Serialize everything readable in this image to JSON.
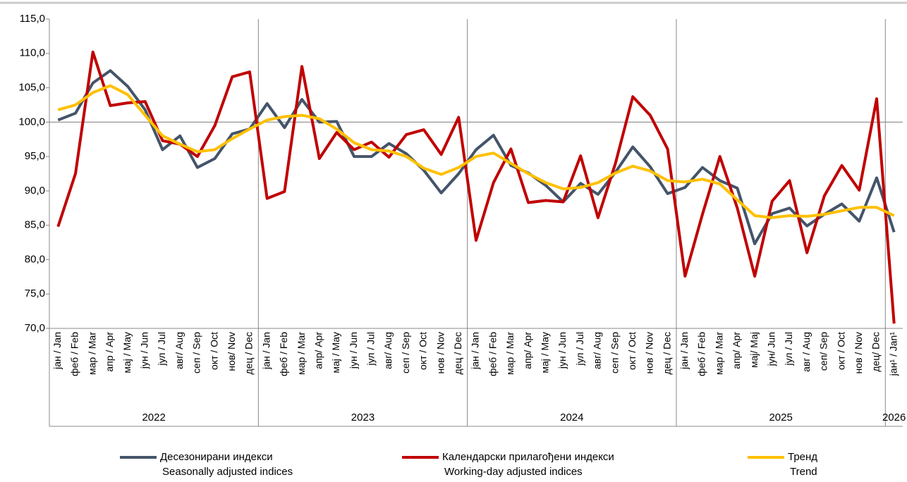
{
  "chart_data": {
    "type": "line",
    "categories": [
      "јан / Jan",
      "феб / Feb",
      "мар / Mar",
      "апр / Apr",
      "мај / May",
      "јун / Jun",
      "јул / Jul",
      "авг/ Aug",
      "сеп / Sep",
      "окт / Oct",
      "нов/ Nov",
      "дец / Dec",
      "јан / Jan",
      "феб / Feb",
      "мар / Mar",
      "апр/ Apr",
      "мај / May",
      "јун / Jun",
      "јул / Jul",
      "авг/ Aug",
      "сеп / Sep",
      "окт / Oct",
      "нов / Nov",
      "дец / Dec",
      "јан / Jan",
      "феб / Feb",
      "мар / Mar",
      "апр/ Apr",
      "мај / May",
      "јун / Jun",
      "јул / Jul",
      "авг/ Aug",
      "сеп / Sep",
      "окт / Oct",
      "нов / Nov",
      "дец / Dec",
      "јан / Jan",
      "феб / Feb",
      "мар / Mar",
      "апр/ Apr",
      "мај/ Мај",
      "јун/ Jun",
      "јул / Jul",
      "авг / Aug",
      "сеп/ Sep",
      "окт / Oct",
      "нов / Nov",
      "дец/ Dec",
      "јан¹ / Jan¹"
    ],
    "years": [
      "2022",
      "2023",
      "2024",
      "2025",
      "2026"
    ],
    "series": [
      {
        "name": "Десезонирани индекси",
        "name_en": "Seasonally adjusted indices",
        "color": "#44546a",
        "values": [
          100.3,
          101.3,
          105.7,
          107.5,
          105.2,
          101.8,
          96.0,
          98.0,
          93.4,
          94.7,
          98.3,
          99.0,
          102.7,
          99.2,
          103.3,
          100.0,
          100.1,
          95.0,
          95.0,
          96.9,
          95.4,
          93.0,
          89.7,
          92.5,
          96.0,
          98.1,
          93.7,
          92.6,
          90.8,
          88.4,
          91.1,
          89.5,
          92.7,
          96.4,
          93.5,
          89.6,
          90.5,
          93.4,
          91.5,
          90.4,
          82.3,
          86.7,
          87.5,
          84.9,
          86.6,
          88.1,
          85.6,
          91.9,
          84.0
        ]
      },
      {
        "name": "Календарски прилагођени индекси",
        "name_en": "Working-day adjusted indices",
        "color": "#c00000",
        "values": [
          84.8,
          92.5,
          110.2,
          102.4,
          102.8,
          103.0,
          97.3,
          96.8,
          95.0,
          99.5,
          106.6,
          107.3,
          88.9,
          89.9,
          108.1,
          94.7,
          98.5,
          96.0,
          97.1,
          94.9,
          98.2,
          98.9,
          95.3,
          100.7,
          82.8,
          91.2,
          96.1,
          88.3,
          88.6,
          88.4,
          95.1,
          86.1,
          94.0,
          103.7,
          101.0,
          96.1,
          77.6,
          86.6,
          95.0,
          87.5,
          77.6,
          88.5,
          91.5,
          81.0,
          89.3,
          93.7,
          90.1,
          103.4,
          70.7
        ]
      },
      {
        "name": "Тренд",
        "name_en": "Trend",
        "color": "#ffc000",
        "values": [
          101.8,
          102.5,
          104.3,
          105.3,
          104.0,
          101.0,
          98.0,
          96.8,
          95.7,
          96.0,
          97.6,
          99.0,
          100.3,
          100.8,
          101.0,
          100.5,
          99.0,
          97.0,
          96.0,
          95.8,
          95.0,
          93.3,
          92.4,
          93.4,
          95.0,
          95.5,
          94.0,
          92.5,
          91.2,
          90.3,
          90.5,
          91.2,
          92.6,
          93.6,
          92.9,
          91.5,
          91.3,
          91.7,
          91.0,
          88.7,
          86.4,
          86.1,
          86.4,
          86.3,
          86.6,
          87.1,
          87.6,
          87.6,
          86.4
        ]
      }
    ],
    "ylim": [
      70,
      115
    ],
    "yticks": [
      {
        "value": 70,
        "label": "70,0"
      },
      {
        "value": 75,
        "label": "75,0"
      },
      {
        "value": 80,
        "label": "80,0"
      },
      {
        "value": 85,
        "label": "85,0"
      },
      {
        "value": 90,
        "label": "90,0"
      },
      {
        "value": 95,
        "label": "95,0"
      },
      {
        "value": 100,
        "label": "100,0"
      },
      {
        "value": 105,
        "label": "105,0"
      },
      {
        "value": 110,
        "label": "110,0"
      },
      {
        "value": 115,
        "label": "115,0"
      }
    ],
    "reference_line": 100
  }
}
